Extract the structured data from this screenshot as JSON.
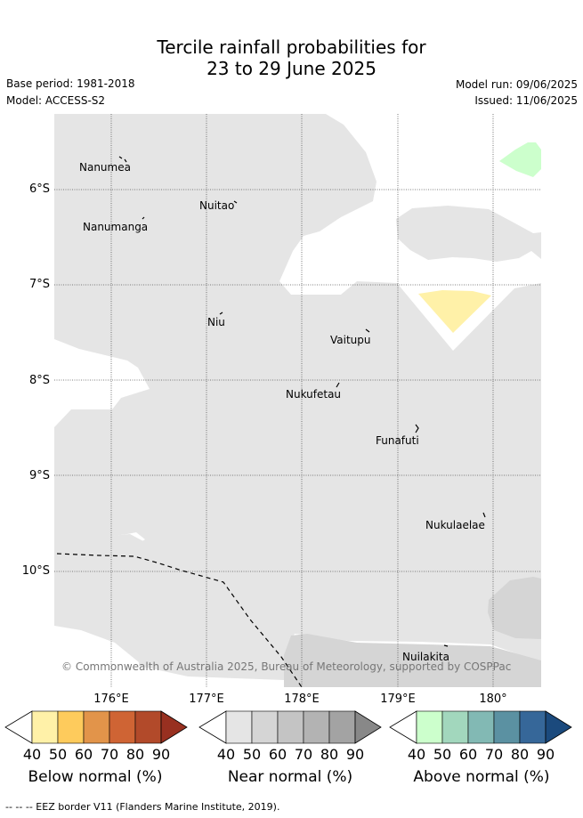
{
  "title_line1": "Tercile rainfall probabilities for",
  "title_line2": "23 to 29 June 2025",
  "base_period": "Base period: 1981-2018",
  "model": "Model: ACCESS-S2",
  "model_run": "Model run: 09/06/2025",
  "issued": "Issued: 11/06/2025",
  "lat_labels": [
    "6°S",
    "7°S",
    "8°S",
    "9°S",
    "10°S"
  ],
  "lon_labels": [
    "176°E",
    "177°E",
    "178°E",
    "179°E",
    "180°"
  ],
  "places": [
    "Nanumea",
    "Nuitao",
    "Nanumanga",
    "Niu",
    "Vaitupu",
    "Nukufetau",
    "Funafuti",
    "Nukulaelae",
    "Nuilakita"
  ],
  "copyright": "© Commonwealth of Australia 2025, Bureau of Meteorology, supported by COSPPac",
  "colorbars": [
    {
      "title": "Below normal (%)",
      "ticks": [
        "40",
        "50",
        "60",
        "70",
        "80",
        "90"
      ],
      "colors": [
        "#fff1a8",
        "#fecb5c",
        "#e2944a",
        "#cf6434",
        "#b24a2a",
        "#983020"
      ]
    },
    {
      "title": "Near normal (%)",
      "ticks": [
        "40",
        "50",
        "60",
        "70",
        "80",
        "90"
      ],
      "colors": [
        "#e5e5e5",
        "#d5d5d5",
        "#c4c4c4",
        "#b3b3b3",
        "#a3a3a3",
        "#888888"
      ]
    },
    {
      "title": "Above normal (%)",
      "ticks": [
        "40",
        "50",
        "60",
        "70",
        "80",
        "90"
      ],
      "colors": [
        "#ccffcc",
        "#a2d7bd",
        "#82b9b4",
        "#5b91a2",
        "#366799",
        "#1b4a7d"
      ]
    }
  ],
  "eez_legend": "-- -- -- EEZ border V11 (Flanders Marine Institute, 2019).",
  "colors": {
    "near_normal_40": "#e5e5e5",
    "near_normal_50": "#d5d5d5",
    "below_normal_40": "#fff1a8",
    "above_normal_40": "#ccffcc"
  }
}
